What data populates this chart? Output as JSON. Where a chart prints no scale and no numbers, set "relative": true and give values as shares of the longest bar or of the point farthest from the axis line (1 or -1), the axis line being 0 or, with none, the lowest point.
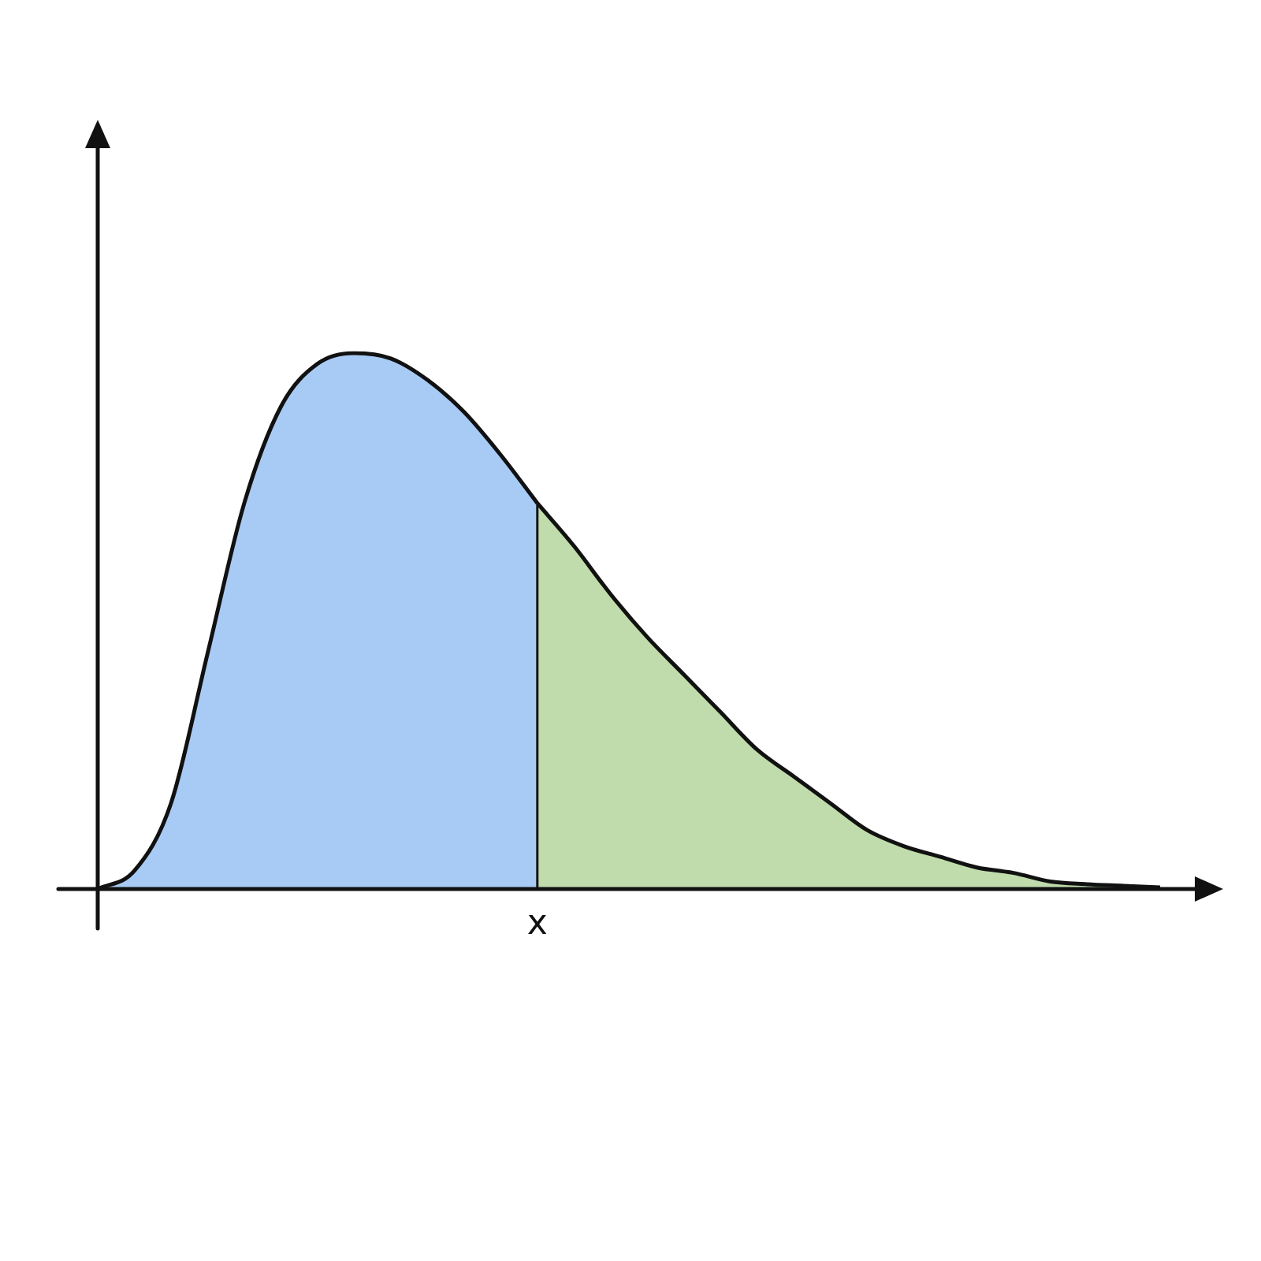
{
  "chart_data": {
    "type": "area",
    "relative": true,
    "grid": false,
    "legend": false,
    "marker": "none",
    "categories": [
      null,
      null,
      null,
      null,
      null,
      null,
      null,
      null,
      null,
      null,
      null,
      null,
      null,
      null,
      null,
      null,
      null,
      null,
      null,
      null,
      null,
      null,
      null,
      null,
      null,
      null,
      null,
      null,
      null,
      null
    ],
    "series": [
      {
        "color": "#a8cbf5",
        "values": [
          0,
          0.034,
          0.16,
          0.44,
          0.72,
          0.9,
          0.98,
          1,
          0.99,
          0.95,
          0.89,
          0.81,
          0.72,
          null,
          null,
          null,
          null,
          null,
          null,
          null,
          null,
          null,
          null,
          null,
          null,
          null,
          null,
          null,
          null,
          null
        ]
      },
      {
        "color": "#c0dcac",
        "values": [
          null,
          null,
          null,
          null,
          null,
          null,
          null,
          null,
          null,
          null,
          null,
          null,
          0.72,
          0.64,
          0.55,
          0.47,
          0.4,
          0.33,
          0.26,
          0.21,
          0.16,
          0.11,
          0.08,
          0.06,
          0.04,
          0.03,
          0.014,
          0.009,
          0.006,
          0.003
        ]
      }
    ],
    "annotations": [
      "x"
    ]
  }
}
